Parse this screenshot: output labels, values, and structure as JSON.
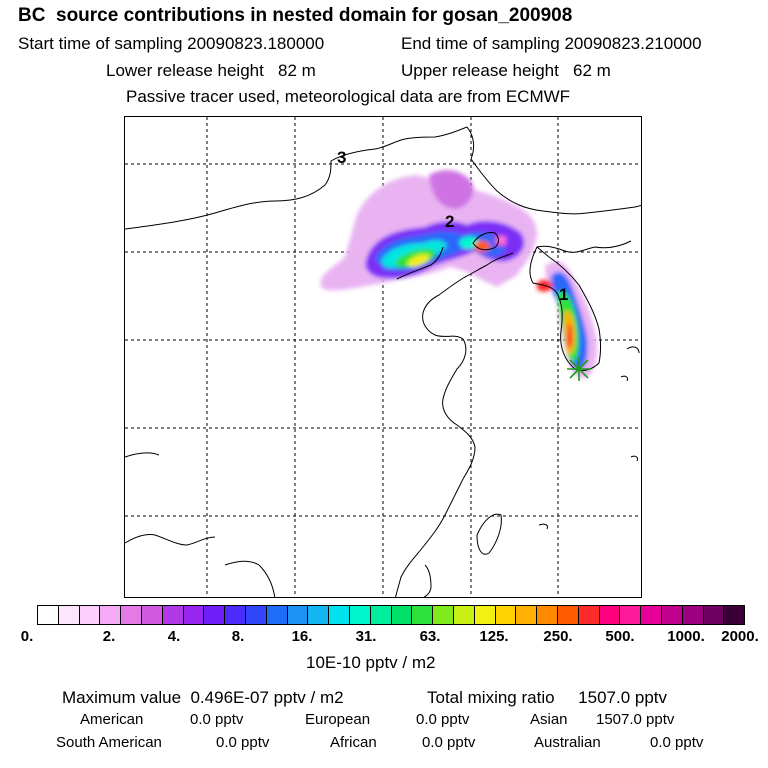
{
  "header": {
    "title": "BC  source contributions in nested domain for gosan_200908",
    "start_label": "Start time of sampling 20090823.180000",
    "end_label": "End time of sampling 20090823.210000",
    "lower_label": "Lower release height   82 m",
    "upper_label": "Upper release height   62 m",
    "tracer_note": "Passive tracer used, meteorological data are from ECMWF"
  },
  "map": {
    "labels": [
      "1",
      "2",
      "3"
    ],
    "receptor_marker": "asterisk-icon"
  },
  "colorbar": {
    "colors": [
      "#ffffff",
      "#fde6fd",
      "#fbcffb",
      "#f5aaf5",
      "#e47ae7",
      "#d05ae0",
      "#b13ae6",
      "#9625ef",
      "#6e1ff7",
      "#4b2cfa",
      "#2f46fb",
      "#1f6cf9",
      "#1a93f5",
      "#14b6f1",
      "#00e3ee",
      "#00f6cd",
      "#00ef9e",
      "#00df66",
      "#2ee03a",
      "#80ea1c",
      "#c8f015",
      "#f0f012",
      "#ffd200",
      "#ffb000",
      "#ff8a00",
      "#ff5a00",
      "#ff2a2a",
      "#ff007f",
      "#ff1a9c",
      "#e60099",
      "#c0008d",
      "#9d0080",
      "#6e0062",
      "#3b0038"
    ],
    "ticks": [
      "0.",
      "2.",
      "4.",
      "8.",
      "16.",
      "31.",
      "63.",
      "125.",
      "250.",
      "500.",
      "1000.",
      "2000."
    ],
    "unit": "10E-10 pptv / m2"
  },
  "summary": {
    "maximum": "Maximum value  0.496E-07 pptv / m2",
    "total": "Total mixing ratio     1507.0 pptv",
    "sources": [
      {
        "name": "American",
        "value": "0.0 pptv"
      },
      {
        "name": "European",
        "value": "0.0 pptv"
      },
      {
        "name": "Asian",
        "value": "1507.0 pptv"
      },
      {
        "name": "South American",
        "value": "0.0 pptv"
      },
      {
        "name": "African",
        "value": "0.0 pptv"
      },
      {
        "name": "Australian",
        "value": "0.0 pptv"
      }
    ]
  }
}
